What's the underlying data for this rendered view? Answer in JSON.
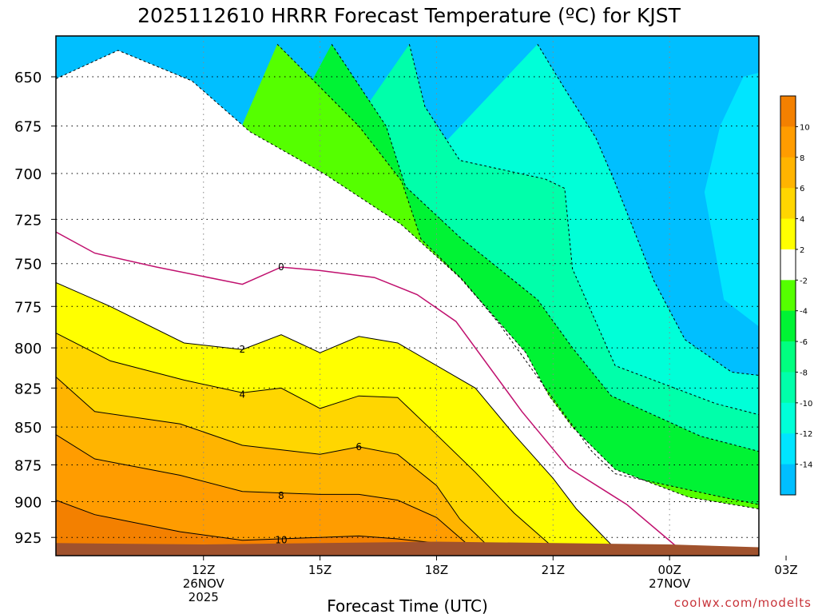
{
  "chart_data": {
    "type": "contour",
    "title": "2025112610 HRRR Forecast Temperature (ºC) for KJST",
    "xlabel": "Forecast Time (UTC)",
    "ylabel": "",
    "x_range_hours_utc": [
      8.2,
      26.3
    ],
    "y_range_hpa": [
      630,
      938
    ],
    "y_scale": "log-pressure (inverted)",
    "y_ticks": [
      "650",
      "675",
      "700",
      "725",
      "750",
      "775",
      "800",
      "825",
      "850",
      "875",
      "900",
      "925"
    ],
    "x_ticks": [
      {
        "hour": 12,
        "lines": [
          "12Z",
          "26NOV",
          "2025"
        ]
      },
      {
        "hour": 15,
        "lines": [
          "15Z"
        ]
      },
      {
        "hour": 18,
        "lines": [
          "18Z"
        ]
      },
      {
        "hour": 21,
        "lines": [
          "21Z"
        ]
      },
      {
        "hour": 24,
        "lines": [
          "00Z",
          "27NOV"
        ]
      },
      {
        "hour": 27,
        "lines": [
          "03Z"
        ]
      }
    ],
    "grid": "dotted",
    "colorbar": {
      "location": "right",
      "levels": [
        {
          "color": "#f38000",
          "label": "10"
        },
        {
          "color": "#ff9c00",
          "label": "8"
        },
        {
          "color": "#ffb400",
          "label": "6"
        },
        {
          "color": "#ffd600",
          "label": "4"
        },
        {
          "color": "#ffff00",
          "label": "2"
        },
        {
          "color": "#ffffff",
          "label": "-2"
        },
        {
          "color": "#55ff00",
          "label": "-4"
        },
        {
          "color": "#00f334",
          "label": "-6"
        },
        {
          "color": "#00ff80",
          "label": "-8"
        },
        {
          "color": "#00ffaa",
          "label": "-10"
        },
        {
          "color": "#00ffd8",
          "label": "-12"
        },
        {
          "color": "#00e5ff",
          "label": "-14"
        },
        {
          "color": "#00bfff",
          "label": ""
        }
      ]
    },
    "fill_order": [
      {
        "value": -14,
        "color": "#00bfff"
      },
      {
        "value": -12,
        "color": "#00e5ff"
      },
      {
        "value": -10,
        "color": "#00ffd8"
      },
      {
        "value": -8,
        "color": "#00ffaa"
      },
      {
        "value": -6,
        "color": "#00f334"
      },
      {
        "value": -4,
        "color": "#55ff00"
      },
      {
        "value": -2,
        "color": "#ffffff"
      },
      {
        "value": 2,
        "color": "#ffff00"
      },
      {
        "value": 4,
        "color": "#ffd600"
      },
      {
        "value": 6,
        "color": "#ffb400"
      },
      {
        "value": 8,
        "color": "#ff9c00"
      },
      {
        "value": 10,
        "color": "#f38000"
      }
    ],
    "isotherms": [
      {
        "value": -14,
        "kind": "region",
        "points": [
          [
            26.3,
            634
          ],
          [
            20.6,
            634
          ],
          [
            21.3,
            648
          ],
          [
            22.1,
            675
          ],
          [
            22.6,
            700
          ],
          [
            24.9,
            730
          ],
          [
            26.3,
            735
          ]
        ]
      },
      {
        "value": -12,
        "kind": "region",
        "points": [
          [
            26.3,
            634
          ],
          [
            26.3,
            648
          ],
          [
            25.9,
            650
          ],
          [
            25.3,
            675
          ],
          [
            24.9,
            710
          ],
          [
            25.4,
            771
          ],
          [
            26.3,
            787
          ]
        ]
      },
      {
        "value": -10,
        "kind": "boundary",
        "dash": true,
        "points": [
          [
            20.6,
            634
          ],
          [
            21.3,
            656
          ],
          [
            22.1,
            681
          ],
          [
            22.6,
            705
          ],
          [
            23.6,
            760
          ],
          [
            24.4,
            795
          ],
          [
            25.6,
            815
          ],
          [
            26.3,
            817
          ]
        ]
      },
      {
        "value": -8,
        "kind": "boundary",
        "dash": true,
        "points": [
          [
            17.3,
            634
          ],
          [
            17.7,
            665
          ],
          [
            18.6,
            693
          ],
          [
            20.8,
            703
          ],
          [
            21.3,
            708
          ],
          [
            21.5,
            753
          ],
          [
            22.6,
            811
          ],
          [
            25.2,
            835
          ],
          [
            26.3,
            842
          ]
        ]
      },
      {
        "value": -6,
        "kind": "boundary",
        "dash": true,
        "points": [
          [
            15.3,
            634
          ],
          [
            16.7,
            675
          ],
          [
            17.2,
            707
          ],
          [
            18.6,
            735
          ],
          [
            20.6,
            771
          ],
          [
            21.5,
            800
          ],
          [
            22.5,
            830
          ],
          [
            24.8,
            856
          ],
          [
            26.3,
            866
          ]
        ]
      },
      {
        "value": -4,
        "kind": "boundary",
        "dash": true,
        "points": [
          [
            13.9,
            634
          ],
          [
            16.0,
            675
          ],
          [
            17.1,
            704
          ],
          [
            17.6,
            736
          ],
          [
            18.7,
            760
          ],
          [
            19.6,
            785
          ],
          [
            21.3,
            842
          ],
          [
            22.0,
            866
          ],
          [
            22.6,
            881
          ],
          [
            25.2,
            896
          ],
          [
            26.3,
            902
          ]
        ]
      },
      {
        "value": -2,
        "kind": "boundary",
        "dash": true,
        "points": [
          [
            8.2,
            651
          ],
          [
            9.8,
            637
          ],
          [
            11.7,
            652
          ],
          [
            13.2,
            678
          ],
          [
            15.1,
            700
          ],
          [
            17.1,
            728
          ],
          [
            18.6,
            758
          ],
          [
            20.3,
            803
          ],
          [
            20.9,
            830
          ],
          [
            21.5,
            850
          ],
          [
            22.6,
            878
          ],
          [
            24.5,
            897
          ],
          [
            26.3,
            905
          ]
        ]
      },
      {
        "value": 0,
        "kind": "line",
        "color": "#c0106e",
        "label_at": [
          14,
          752
        ],
        "points": [
          [
            8.2,
            732
          ],
          [
            9.2,
            744
          ],
          [
            10.8,
            752
          ],
          [
            13.0,
            762
          ],
          [
            14.0,
            752
          ],
          [
            15.0,
            754
          ],
          [
            16.4,
            758
          ],
          [
            17.5,
            768
          ],
          [
            18.5,
            784
          ],
          [
            20.2,
            840
          ],
          [
            21.4,
            877
          ],
          [
            22.9,
            902
          ],
          [
            24.2,
            932
          ],
          [
            26.3,
            938
          ]
        ]
      },
      {
        "value": 2,
        "kind": "line",
        "color": "#000000",
        "label_at": [
          13,
          801
        ],
        "points": [
          [
            8.2,
            761
          ],
          [
            9.6,
            775
          ],
          [
            11.5,
            797
          ],
          [
            13.0,
            801
          ],
          [
            14.0,
            792
          ],
          [
            15.0,
            803
          ],
          [
            16.0,
            793
          ],
          [
            17.0,
            797
          ],
          [
            19.0,
            825
          ],
          [
            20.0,
            855
          ],
          [
            21.0,
            884
          ],
          [
            21.6,
            905
          ],
          [
            22.6,
            933
          ],
          [
            23.0,
            938
          ]
        ]
      },
      {
        "value": 4,
        "kind": "line",
        "color": "#000000",
        "label_at": [
          13,
          829
        ],
        "points": [
          [
            8.2,
            791
          ],
          [
            9.6,
            808
          ],
          [
            11.5,
            820
          ],
          [
            13.0,
            828
          ],
          [
            14.0,
            825
          ],
          [
            15.0,
            838
          ],
          [
            16.0,
            830
          ],
          [
            17.0,
            831
          ],
          [
            18.0,
            855
          ],
          [
            19.0,
            880
          ],
          [
            20.0,
            908
          ],
          [
            21.0,
            932
          ],
          [
            21.5,
            938
          ]
        ]
      },
      {
        "value": 6,
        "kind": "line",
        "color": "#000000",
        "label_at": [
          16,
          863
        ],
        "points": [
          [
            8.2,
            818
          ],
          [
            9.2,
            840
          ],
          [
            11.4,
            848
          ],
          [
            13.0,
            862
          ],
          [
            15.0,
            868
          ],
          [
            16.0,
            863
          ],
          [
            17.0,
            868
          ],
          [
            18.0,
            889
          ],
          [
            18.6,
            912
          ],
          [
            19.4,
            933
          ],
          [
            19.6,
            938
          ]
        ]
      },
      {
        "value": 8,
        "kind": "line",
        "color": "#000000",
        "label_at": [
          14,
          896
        ],
        "points": [
          [
            8.2,
            855
          ],
          [
            9.2,
            871
          ],
          [
            11.4,
            882
          ],
          [
            13.0,
            893
          ],
          [
            15.0,
            895
          ],
          [
            16.0,
            895
          ],
          [
            17.0,
            899
          ],
          [
            18.0,
            911
          ],
          [
            18.8,
            930
          ],
          [
            19.0,
            938
          ]
        ]
      },
      {
        "value": 10,
        "kind": "line",
        "color": "#000000",
        "label_at": [
          14,
          927
        ],
        "points": [
          [
            8.2,
            899
          ],
          [
            9.2,
            909
          ],
          [
            11.4,
            921
          ],
          [
            13.0,
            927
          ],
          [
            15.0,
            925
          ],
          [
            16.0,
            924
          ],
          [
            17.0,
            926
          ],
          [
            18.0,
            929
          ],
          [
            19.0,
            938
          ]
        ]
      }
    ],
    "terrain": {
      "color": "#a0522d",
      "top_hpa": [
        [
          8.2,
          929
        ],
        [
          12,
          930
        ],
        [
          18,
          928
        ],
        [
          24,
          930
        ],
        [
          26.3,
          932
        ]
      ]
    }
  },
  "credit": "coolwx.com/modelts"
}
